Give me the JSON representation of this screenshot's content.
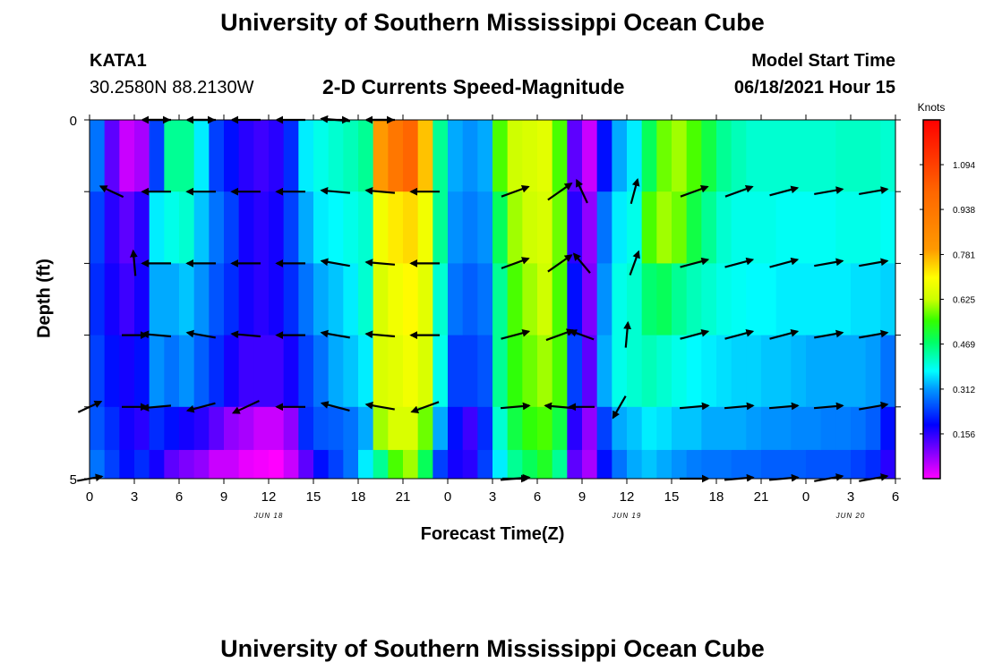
{
  "page": {
    "title_top": "University of Southern Mississippi Ocean Cube",
    "title_bottom": "University of Southern Mississippi Ocean Cube",
    "station": "KATA1",
    "location": "30.2580N  88.2130W",
    "model_start_label": "Model Start Time",
    "model_start_value": "06/18/2021 Hour 15"
  },
  "chart_data": {
    "type": "heatmap",
    "title": "2-D Currents Speed-Magnitude",
    "xlabel": "Forecast Time(Z)",
    "ylabel": "Depth (ft)",
    "x_tick_labels": [
      "0",
      "3",
      "6",
      "9",
      "12",
      "15",
      "18",
      "21",
      "0",
      "3",
      "6",
      "9",
      "12",
      "15",
      "18",
      "21",
      "0",
      "3",
      "6"
    ],
    "x_hours": [
      0,
      3,
      6,
      9,
      12,
      15,
      18,
      21,
      24,
      27,
      30,
      33,
      36,
      39,
      42,
      45,
      48,
      51,
      54
    ],
    "date_labels": [
      {
        "text": "JUN 18",
        "hour": 12
      },
      {
        "text": "JUN 19",
        "hour": 36
      },
      {
        "text": "JUN 20",
        "hour": 51
      }
    ],
    "y_tick_labels": [
      "0",
      "5"
    ],
    "ylim": [
      0,
      5
    ],
    "colorbar": {
      "unit": "Knots",
      "ticks": [
        "1.094",
        "0.938",
        "0.781",
        "0.625",
        "0.469",
        "0.312",
        "0.156"
      ],
      "tick_values": [
        1.094,
        0.938,
        0.781,
        0.625,
        0.469,
        0.312,
        0.156
      ],
      "min": 0.0,
      "max": 1.25
    },
    "depth_rows_ft": [
      0.5,
      1.5,
      2.5,
      3.5,
      4.5,
      5.0
    ],
    "speed_columns_knots": [
      {
        "h": 0,
        "v": [
          0.35,
          0.3,
          0.28,
          0.3,
          0.32,
          0.35
        ]
      },
      {
        "h": 1,
        "v": [
          0.15,
          0.2,
          0.22,
          0.25,
          0.28,
          0.3
        ]
      },
      {
        "h": 2,
        "v": [
          0.05,
          0.15,
          0.18,
          0.22,
          0.22,
          0.25
        ]
      },
      {
        "h": 3,
        "v": [
          0.08,
          0.2,
          0.22,
          0.25,
          0.2,
          0.28
        ]
      },
      {
        "h": 4,
        "v": [
          0.3,
          0.45,
          0.4,
          0.38,
          0.28,
          0.22
        ]
      },
      {
        "h": 5,
        "v": [
          0.55,
          0.48,
          0.4,
          0.35,
          0.25,
          0.15
        ]
      },
      {
        "h": 6,
        "v": [
          0.55,
          0.5,
          0.42,
          0.38,
          0.22,
          0.12
        ]
      },
      {
        "h": 7,
        "v": [
          0.45,
          0.42,
          0.38,
          0.33,
          0.2,
          0.1
        ]
      },
      {
        "h": 8,
        "v": [
          0.3,
          0.35,
          0.32,
          0.28,
          0.15,
          0.05
        ]
      },
      {
        "h": 9,
        "v": [
          0.25,
          0.3,
          0.28,
          0.22,
          0.1,
          0.05
        ]
      },
      {
        "h": 10,
        "v": [
          0.2,
          0.22,
          0.22,
          0.18,
          0.08,
          0.02
        ]
      },
      {
        "h": 11,
        "v": [
          0.18,
          0.2,
          0.2,
          0.18,
          0.05,
          0.01
        ]
      },
      {
        "h": 12,
        "v": [
          0.2,
          0.22,
          0.22,
          0.18,
          0.05,
          0.0
        ]
      },
      {
        "h": 13,
        "v": [
          0.28,
          0.3,
          0.28,
          0.22,
          0.1,
          0.05
        ]
      },
      {
        "h": 14,
        "v": [
          0.45,
          0.4,
          0.35,
          0.3,
          0.28,
          0.15
        ]
      },
      {
        "h": 15,
        "v": [
          0.48,
          0.45,
          0.4,
          0.35,
          0.32,
          0.25
        ]
      },
      {
        "h": 16,
        "v": [
          0.5,
          0.46,
          0.42,
          0.4,
          0.33,
          0.3
        ]
      },
      {
        "h": 17,
        "v": [
          0.52,
          0.48,
          0.45,
          0.42,
          0.35,
          0.35
        ]
      },
      {
        "h": 18,
        "v": [
          0.55,
          0.5,
          0.5,
          0.45,
          0.4,
          0.45
        ]
      },
      {
        "h": 19,
        "v": [
          1.0,
          0.85,
          0.8,
          0.8,
          0.75,
          0.55
        ]
      },
      {
        "h": 20,
        "v": [
          1.1,
          0.9,
          0.85,
          0.82,
          0.8,
          0.7
        ]
      },
      {
        "h": 21,
        "v": [
          1.15,
          0.92,
          0.88,
          0.85,
          0.8,
          0.75
        ]
      },
      {
        "h": 22,
        "v": [
          0.95,
          0.85,
          0.82,
          0.8,
          0.72,
          0.6
        ]
      },
      {
        "h": 23,
        "v": [
          0.55,
          0.55,
          0.5,
          0.48,
          0.4,
          0.3
        ]
      },
      {
        "h": 24,
        "v": [
          0.4,
          0.38,
          0.35,
          0.3,
          0.25,
          0.22
        ]
      },
      {
        "h": 25,
        "v": [
          0.38,
          0.36,
          0.33,
          0.3,
          0.18,
          0.2
        ]
      },
      {
        "h": 26,
        "v": [
          0.4,
          0.38,
          0.35,
          0.32,
          0.28,
          0.3
        ]
      },
      {
        "h": 27,
        "v": [
          0.7,
          0.6,
          0.55,
          0.55,
          0.5,
          0.45
        ]
      },
      {
        "h": 28,
        "v": [
          0.78,
          0.75,
          0.7,
          0.68,
          0.62,
          0.55
        ]
      },
      {
        "h": 29,
        "v": [
          0.8,
          0.78,
          0.75,
          0.72,
          0.68,
          0.6
        ]
      },
      {
        "h": 30,
        "v": [
          0.82,
          0.8,
          0.78,
          0.75,
          0.7,
          0.65
        ]
      },
      {
        "h": 31,
        "v": [
          0.7,
          0.72,
          0.7,
          0.7,
          0.62,
          0.55
        ]
      },
      {
        "h": 32,
        "v": [
          0.15,
          0.2,
          0.25,
          0.3,
          0.2,
          0.15
        ]
      },
      {
        "h": 33,
        "v": [
          0.05,
          0.1,
          0.12,
          0.15,
          0.1,
          0.08
        ]
      },
      {
        "h": 34,
        "v": [
          0.25,
          0.35,
          0.38,
          0.4,
          0.3,
          0.25
        ]
      },
      {
        "h": 35,
        "v": [
          0.4,
          0.45,
          0.48,
          0.48,
          0.4,
          0.35
        ]
      },
      {
        "h": 36,
        "v": [
          0.45,
          0.48,
          0.5,
          0.5,
          0.42,
          0.4
        ]
      },
      {
        "h": 37,
        "v": [
          0.6,
          0.7,
          0.58,
          0.52,
          0.45,
          0.42
        ]
      },
      {
        "h": 38,
        "v": [
          0.72,
          0.75,
          0.6,
          0.5,
          0.44,
          0.4
        ]
      },
      {
        "h": 39,
        "v": [
          0.75,
          0.72,
          0.55,
          0.48,
          0.42,
          0.38
        ]
      },
      {
        "h": 40,
        "v": [
          0.7,
          0.62,
          0.52,
          0.46,
          0.42,
          0.36
        ]
      },
      {
        "h": 41,
        "v": [
          0.62,
          0.55,
          0.5,
          0.45,
          0.4,
          0.35
        ]
      },
      {
        "h": 42,
        "v": [
          0.55,
          0.5,
          0.48,
          0.44,
          0.4,
          0.35
        ]
      },
      {
        "h": 43,
        "v": [
          0.52,
          0.48,
          0.47,
          0.43,
          0.4,
          0.34
        ]
      },
      {
        "h": 44,
        "v": [
          0.5,
          0.48,
          0.46,
          0.43,
          0.39,
          0.34
        ]
      },
      {
        "h": 45,
        "v": [
          0.5,
          0.48,
          0.46,
          0.42,
          0.38,
          0.33
        ]
      },
      {
        "h": 46,
        "v": [
          0.5,
          0.47,
          0.45,
          0.42,
          0.38,
          0.33
        ]
      },
      {
        "h": 47,
        "v": [
          0.5,
          0.47,
          0.45,
          0.41,
          0.37,
          0.33
        ]
      },
      {
        "h": 48,
        "v": [
          0.5,
          0.47,
          0.45,
          0.4,
          0.37,
          0.32
        ]
      },
      {
        "h": 49,
        "v": [
          0.5,
          0.47,
          0.45,
          0.4,
          0.36,
          0.32
        ]
      },
      {
        "h": 50,
        "v": [
          0.51,
          0.48,
          0.45,
          0.4,
          0.36,
          0.32
        ]
      },
      {
        "h": 51,
        "v": [
          0.51,
          0.48,
          0.44,
          0.4,
          0.35,
          0.3
        ]
      },
      {
        "h": 52,
        "v": [
          0.51,
          0.48,
          0.44,
          0.39,
          0.33,
          0.28
        ]
      },
      {
        "h": 53,
        "v": [
          0.5,
          0.47,
          0.43,
          0.35,
          0.25,
          0.2
        ]
      }
    ],
    "vector_rows_ft": [
      0,
      1,
      2,
      3,
      4,
      5
    ],
    "vectors": [
      {
        "h": 4.5,
        "dirs": [
          180,
          180,
          180,
          175,
          185,
          null
        ]
      },
      {
        "h": 7.5,
        "dirs": [
          180,
          180,
          180,
          170,
          195,
          null
        ]
      },
      {
        "h": 10.5,
        "dirs": [
          180,
          180,
          180,
          175,
          205,
          null
        ]
      },
      {
        "h": 13.5,
        "dirs": [
          180,
          180,
          180,
          180,
          180,
          null
        ]
      },
      {
        "h": 16.5,
        "dirs": [
          175,
          175,
          170,
          170,
          165,
          null
        ]
      },
      {
        "h": 19.5,
        "dirs": [
          180,
          175,
          175,
          175,
          170,
          null
        ]
      },
      {
        "h": 22.5,
        "dirs": [
          null,
          180,
          180,
          180,
          200,
          null
        ]
      },
      {
        "h": 28.5,
        "dirs": [
          null,
          20,
          20,
          15,
          5,
          5
        ]
      },
      {
        "h": 31.5,
        "dirs": [
          null,
          35,
          35,
          20,
          175,
          null
        ]
      },
      {
        "h": 34.5,
        "dirs": [
          null,
          null,
          null,
          null,
          null,
          null
        ]
      },
      {
        "h": 40.5,
        "dirs": [
          null,
          20,
          15,
          15,
          5,
          0
        ]
      },
      {
        "h": 43.5,
        "dirs": [
          null,
          20,
          15,
          15,
          5,
          5
        ]
      },
      {
        "h": 46.5,
        "dirs": [
          null,
          15,
          15,
          15,
          5,
          5
        ]
      },
      {
        "h": 49.5,
        "dirs": [
          null,
          10,
          10,
          10,
          5,
          10
        ]
      },
      {
        "h": 52.5,
        "dirs": [
          null,
          10,
          10,
          10,
          10,
          10
        ]
      }
    ],
    "special_vectors": [
      {
        "h": 1.5,
        "depth": 1,
        "dir": 155
      },
      {
        "h": 3,
        "depth": 2,
        "dir": 95
      },
      {
        "h": 3,
        "depth": 3,
        "dir": 0
      },
      {
        "h": 3,
        "depth": 4,
        "dir": 0
      },
      {
        "h": 0,
        "depth": 4,
        "dir": 25
      },
      {
        "h": 0,
        "depth": 5,
        "dir": 10
      },
      {
        "h": 33,
        "depth": 1,
        "dir": 115
      },
      {
        "h": 33,
        "depth": 2,
        "dir": 130
      },
      {
        "h": 33,
        "depth": 3,
        "dir": 160
      },
      {
        "h": 33,
        "depth": 4,
        "dir": 180
      },
      {
        "h": 36.5,
        "depth": 1,
        "dir": 75
      },
      {
        "h": 36.5,
        "depth": 2,
        "dir": 70
      },
      {
        "h": 36,
        "depth": 3,
        "dir": 85
      },
      {
        "h": 35.5,
        "depth": 4,
        "dir": 240
      },
      {
        "h": 4.5,
        "depth": 0,
        "dir": 0
      },
      {
        "h": 7.5,
        "depth": 0,
        "dir": 0
      },
      {
        "h": 16.5,
        "depth": 0,
        "dir": 0
      },
      {
        "h": 19.5,
        "depth": 0,
        "dir": 0
      },
      {
        "h": 28.5,
        "depth": 5,
        "dir": 0
      }
    ]
  }
}
